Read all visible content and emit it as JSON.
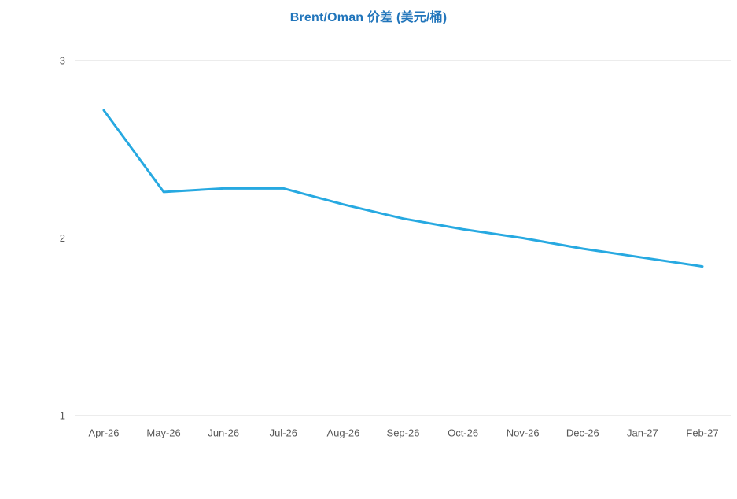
{
  "chart_data": {
    "type": "line",
    "title": "Brent/Oman 价差 (美元/桶)",
    "categories": [
      "Apr-26",
      "May-26",
      "Jun-26",
      "Jul-26",
      "Aug-26",
      "Sep-26",
      "Oct-26",
      "Nov-26",
      "Dec-26",
      "Jan-27",
      "Feb-27"
    ],
    "values": [
      2.72,
      2.26,
      2.28,
      2.28,
      2.19,
      2.11,
      2.05,
      2.0,
      1.94,
      1.89,
      1.84
    ],
    "xlabel": "",
    "ylabel": "",
    "ylim": [
      1,
      3
    ],
    "yticks": [
      1,
      2,
      3
    ],
    "grid": true,
    "legend_position": "none",
    "colors": {
      "line": "#27A9E1",
      "title": "#2175BB",
      "axis_text": "#595959",
      "gridline": "#D9D9D9"
    }
  }
}
